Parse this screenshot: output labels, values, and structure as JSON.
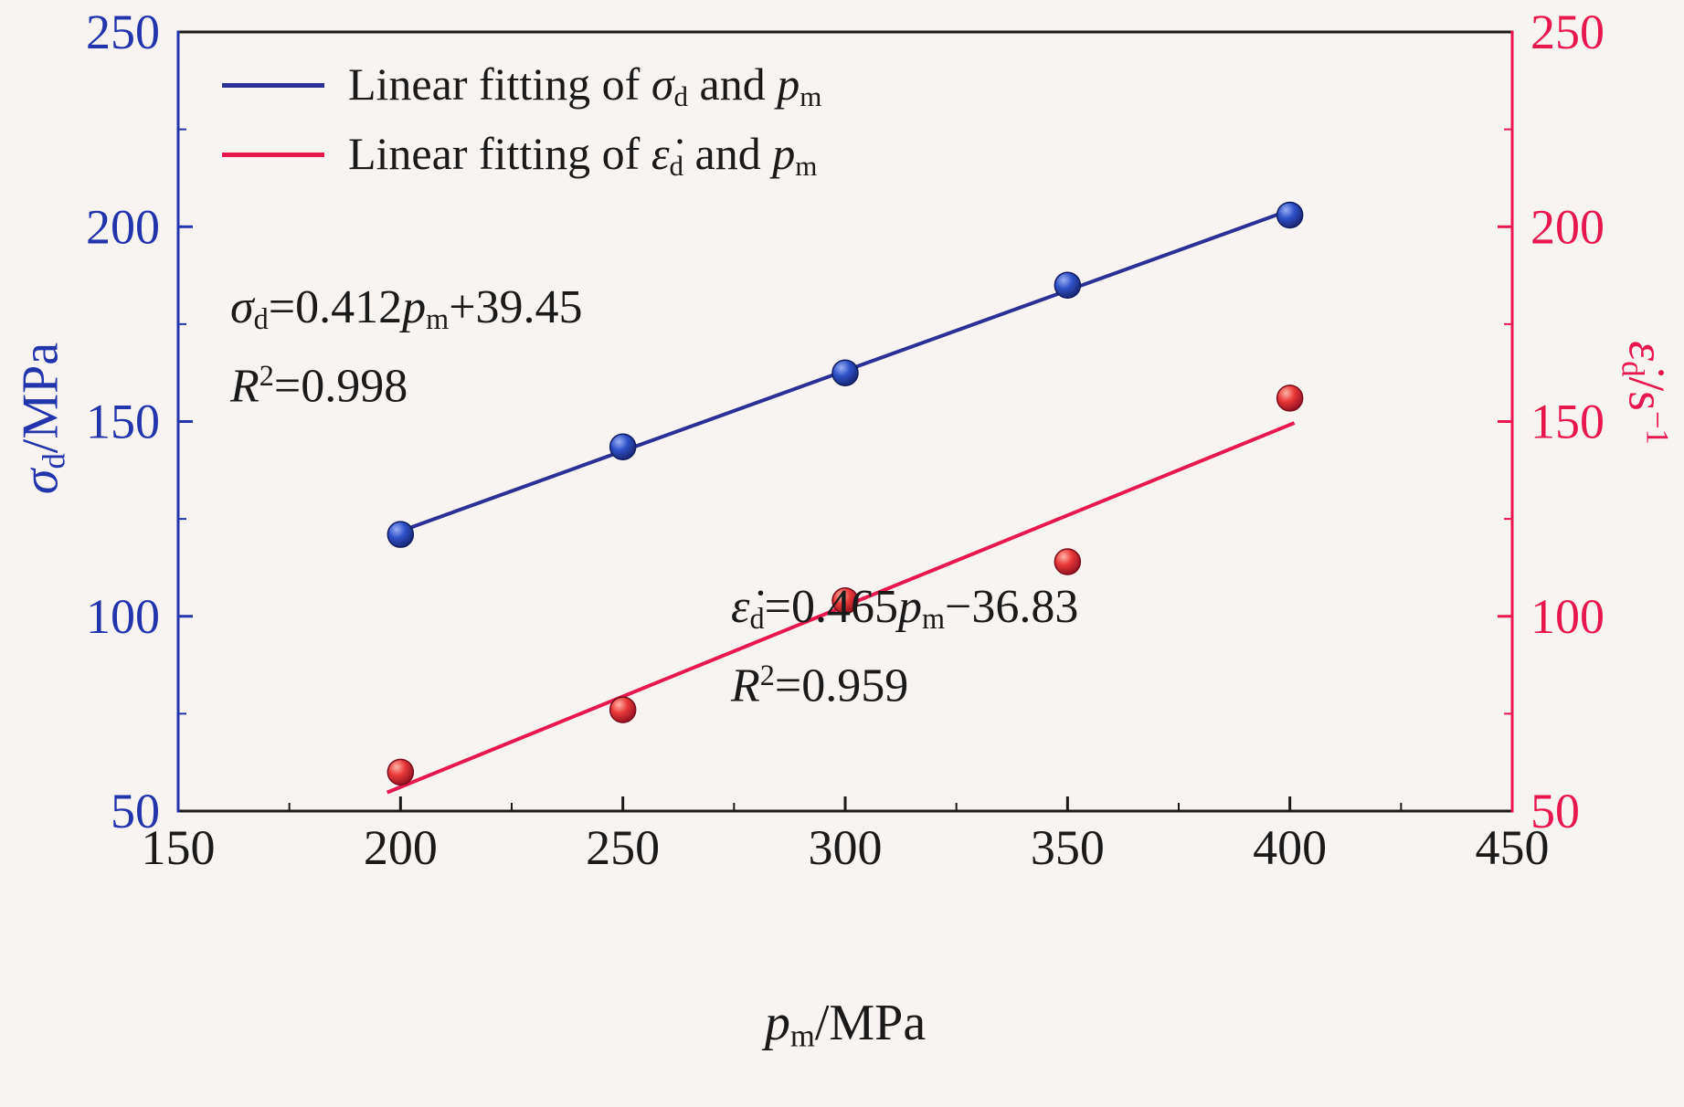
{
  "page": {
    "background": "#f7f4f2"
  },
  "colors": {
    "left_axis_blue": "#2434ac",
    "blue_line": "#2c2f96",
    "right_axis_crimson": "#e8174e",
    "frame_black": "#1a1a1a"
  },
  "legend": {
    "items": [
      {
        "name": "sigma-fit",
        "color": "#2c2f96",
        "prefix": "Linear fitting of ",
        "var1": "σ",
        "var1_sub": "d",
        "conj": " and ",
        "var2": "p",
        "var2_sub": "m"
      },
      {
        "name": "epsilon-fit",
        "color": "#e8174e",
        "prefix": "Linear fitting of ",
        "var1": "ε̇",
        "var1_sub": "d",
        "conj": " and ",
        "var2": "p",
        "var2_sub": "m"
      }
    ]
  },
  "annotations": {
    "blue": {
      "var": "σ",
      "sub": "d",
      "eq": "=0.412",
      "var2": "p",
      "sub2": "m",
      "tail": "+39.45",
      "r_label": "R",
      "r_sup": "2",
      "r_val": "=0.998"
    },
    "red": {
      "var": "ε̇",
      "sub": "d",
      "eq": "=0.465",
      "var2": "p",
      "sub2": "m",
      "tail": "−36.83",
      "r_label": "R",
      "r_sup": "2",
      "r_val": "=0.959"
    }
  },
  "axes": {
    "bottom_title": {
      "var": "p",
      "sub": "m",
      "rest": "/MPa"
    },
    "left_title": {
      "var": "σ",
      "sub": "d",
      "rest": "/MPa"
    },
    "right_title": {
      "var": "ε̇",
      "sub": "d",
      "rest": "/s",
      "sup": "−1"
    }
  },
  "chart_data": {
    "type": "scatter",
    "title": "",
    "xlabel": "pm/MPa",
    "x": [
      200,
      250,
      300,
      350,
      400
    ],
    "x_axis": {
      "range": [
        150,
        450
      ],
      "ticks": [
        150,
        200,
        250,
        300,
        350,
        400,
        450
      ],
      "color": "#1a1a1a"
    },
    "left_axis": {
      "label": "σd/MPa",
      "range": [
        50,
        250
      ],
      "ticks": [
        50,
        100,
        150,
        200,
        250
      ],
      "color": "#2434ac"
    },
    "right_axis": {
      "label": "ε̇d/s−1",
      "range": [
        50,
        250
      ],
      "ticks": [
        50,
        100,
        150,
        200,
        250
      ],
      "color": "#e8174e"
    },
    "series": [
      {
        "name": "sigma",
        "axis": "left",
        "color_line": "#2c2f96",
        "point_gradient": "gradBlue",
        "point_edge": "#101c60",
        "values": [
          121,
          143.5,
          162.5,
          185,
          203
        ],
        "fit": {
          "equation": "σd=0.412pm+39.45",
          "slope": 0.412,
          "intercept": 39.45,
          "r2": 0.998,
          "x_start": 198,
          "x_end": 402
        }
      },
      {
        "name": "epsilon",
        "axis": "right",
        "color_line": "#e8174e",
        "point_gradient": "gradRed",
        "point_edge": "#7a0c1a",
        "values": [
          60,
          76,
          104,
          114,
          156
        ],
        "fit": {
          "equation": "ε̇d=0.465pm−36.83",
          "slope": 0.465,
          "intercept": -36.83,
          "r2": 0.959,
          "x_start": 197,
          "x_end": 401
        }
      }
    ],
    "legend_entries": [
      "Linear fitting of σd and pm",
      "Linear fitting of ε̇d and pm"
    ],
    "grid": false,
    "legend_position": "top-left"
  }
}
